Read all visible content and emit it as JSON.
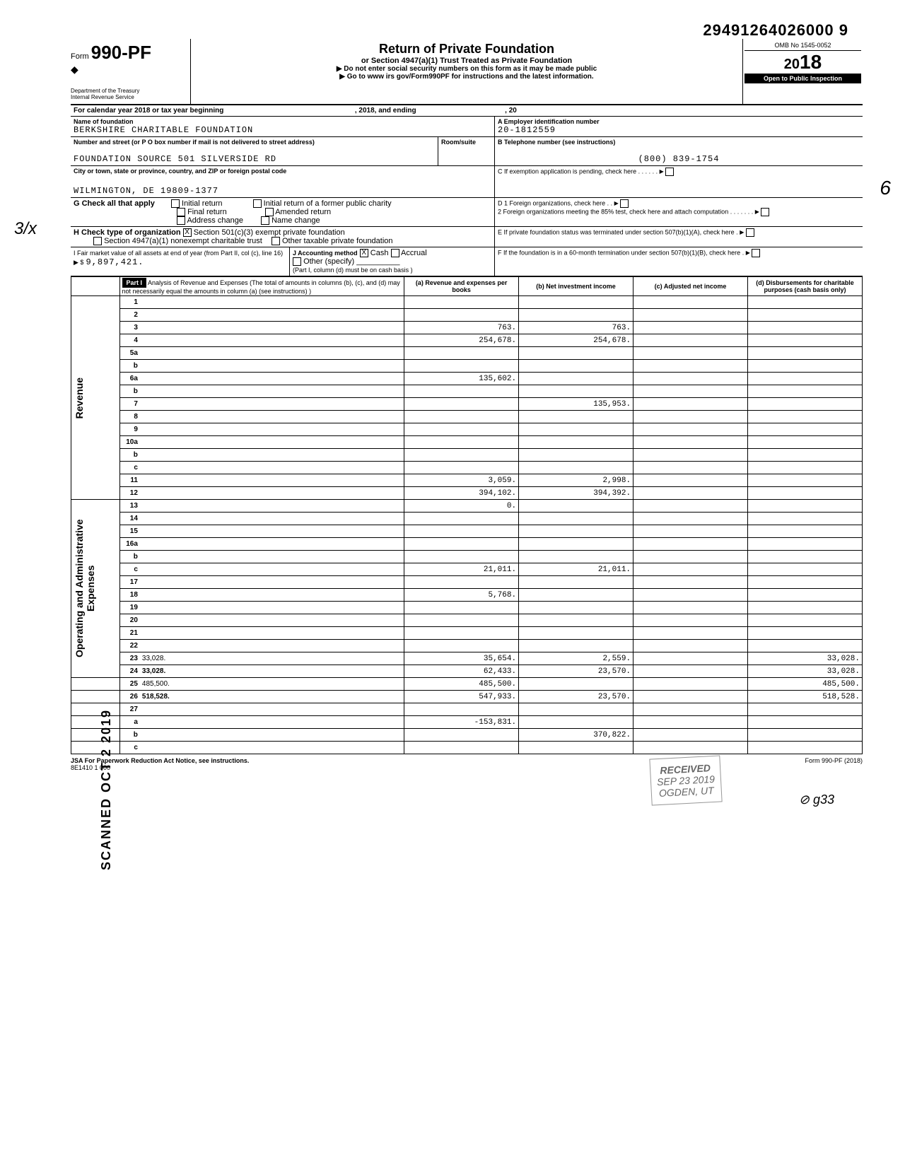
{
  "dln": "29491264026000 9",
  "form": {
    "prefix": "Form",
    "number": "990-PF",
    "dept1": "Department of the Treasury",
    "dept2": "Internal Revenue Service"
  },
  "header": {
    "title": "Return of Private Foundation",
    "sub1": "or Section 4947(a)(1) Trust Treated as Private Foundation",
    "sub2": "▶ Do not enter social security numbers on this form as it may be made public",
    "sub3": "▶ Go to www irs gov/Form990PF for instructions and the latest information."
  },
  "omb": "OMB No 1545-0052",
  "year": "2018",
  "inspect": "Open to Public Inspection",
  "calendar": {
    "label": "For calendar year 2018 or tax year beginning",
    "mid": ", 2018, and ending",
    "end": ", 20"
  },
  "A": {
    "label": "A  Employer identification number",
    "value": "20-1812559"
  },
  "name": {
    "label": "Name of foundation",
    "value": "BERKSHIRE CHARITABLE FOUNDATION"
  },
  "B": {
    "label": "B  Telephone number (see instructions)",
    "value": "(800) 839-1754"
  },
  "address": {
    "label": "Number and street (or P O  box number if mail is not delivered to street address)",
    "value": "FOUNDATION SOURCE 501 SILVERSIDE RD",
    "room": "Room/suite"
  },
  "city": {
    "label": "City or town, state or province, country, and ZIP or foreign postal code",
    "value": "WILMINGTON, DE 19809-1377"
  },
  "C": "C  If exemption application is pending, check here",
  "G": {
    "label": "G  Check all that apply",
    "opts": [
      "Initial return",
      "Final return",
      "Address change",
      "Initial return of a former public charity",
      "Amended return",
      "Name change"
    ]
  },
  "D": {
    "d1": "D  1  Foreign organizations, check here",
    "d2": "2  Foreign organizations meeting the 85% test, check here and attach computation"
  },
  "H": {
    "label": "H  Check type of organization",
    "opt1": "Section 501(c)(3) exempt private foundation",
    "opt2": "Section 4947(a)(1) nonexempt charitable trust",
    "opt3": "Other taxable private foundation"
  },
  "E": "E  If private foundation status was terminated under section 507(b)(1)(A), check here",
  "I": {
    "label": "I  Fair market value of all assets at end of year (from Part II, col (c), line 16) ▶ $",
    "value": "9,897,421."
  },
  "J": {
    "label": "J Accounting method",
    "cash": "Cash",
    "accrual": "Accrual",
    "other": "Other (specify)",
    "note": "(Part I, column (d) must be on cash basis )"
  },
  "F": "F  If the foundation is in a 60-month termination under section 507(b)(1)(B), check here",
  "part1": {
    "title": "Part I",
    "desc": "Analysis of Revenue and Expenses (The total of amounts in columns (b), (c), and (d) may not necessarily equal the amounts in column (a) (see instructions) )",
    "cols": [
      "(a) Revenue and expenses per books",
      "(b) Net investment income",
      "(c) Adjusted net income",
      "(d) Disbursements for charitable purposes (cash basis only)"
    ]
  },
  "sidebars": {
    "rev": "Revenue",
    "exp": "Operating and Administrative Expenses"
  },
  "lines": [
    {
      "n": "1",
      "d": "",
      "a": "",
      "b": "",
      "c": ""
    },
    {
      "n": "2",
      "d": "",
      "a": "",
      "b": "",
      "c": "",
      "blockBCD": true
    },
    {
      "n": "3",
      "d": "",
      "a": "763.",
      "b": "763.",
      "c": ""
    },
    {
      "n": "4",
      "d": "",
      "a": "254,678.",
      "b": "254,678.",
      "c": ""
    },
    {
      "n": "5a",
      "d": "",
      "a": "",
      "b": "",
      "c": ""
    },
    {
      "n": "b",
      "d": "",
      "a": "",
      "b": "",
      "c": "",
      "blockABCD": true
    },
    {
      "n": "6a",
      "d": "",
      "a": "135,602.",
      "b": "",
      "c": "",
      "blockBCD": true
    },
    {
      "n": "b",
      "d": "",
      "a": "",
      "b": "",
      "c": "",
      "blockABCD": true
    },
    {
      "n": "7",
      "d": "",
      "a": "",
      "b": "135,953.",
      "c": "",
      "blockA": true
    },
    {
      "n": "8",
      "d": "",
      "a": "",
      "b": "",
      "c": "",
      "blockAB": true
    },
    {
      "n": "9",
      "d": "",
      "a": "",
      "b": "",
      "c": "",
      "blockAB": true
    },
    {
      "n": "10a",
      "d": "",
      "a": "",
      "b": "",
      "c": "",
      "blockABCD": true
    },
    {
      "n": "b",
      "d": "",
      "a": "",
      "b": "",
      "c": "",
      "blockABCD": true
    },
    {
      "n": "c",
      "d": "",
      "a": "",
      "b": "",
      "c": "",
      "blockB": true
    },
    {
      "n": "11",
      "d": "",
      "a": "3,059.",
      "b": "2,998.",
      "c": ""
    },
    {
      "n": "12",
      "d": "",
      "a": "394,102.",
      "b": "394,392.",
      "c": "",
      "bold": true
    },
    {
      "n": "13",
      "d": "",
      "a": "0.",
      "b": "",
      "c": ""
    },
    {
      "n": "14",
      "d": "",
      "a": "",
      "b": "",
      "c": ""
    },
    {
      "n": "15",
      "d": "",
      "a": "",
      "b": "",
      "c": ""
    },
    {
      "n": "16a",
      "d": "",
      "a": "",
      "b": "",
      "c": ""
    },
    {
      "n": "b",
      "d": "",
      "a": "",
      "b": "",
      "c": ""
    },
    {
      "n": "c",
      "d": "",
      "a": "21,011.",
      "b": "21,011.",
      "c": ""
    },
    {
      "n": "17",
      "d": "",
      "a": "",
      "b": "",
      "c": ""
    },
    {
      "n": "18",
      "d": "",
      "a": "5,768.",
      "b": "",
      "c": ""
    },
    {
      "n": "19",
      "d": "",
      "a": "",
      "b": "",
      "c": "",
      "blockD": true
    },
    {
      "n": "20",
      "d": "",
      "a": "",
      "b": "",
      "c": ""
    },
    {
      "n": "21",
      "d": "",
      "a": "",
      "b": "",
      "c": ""
    },
    {
      "n": "22",
      "d": "",
      "a": "",
      "b": "",
      "c": ""
    },
    {
      "n": "23",
      "d": "33,028.",
      "a": "35,654.",
      "b": "2,559.",
      "c": ""
    },
    {
      "n": "24",
      "d": "33,028.",
      "a": "62,433.",
      "b": "23,570.",
      "c": "",
      "bold": true
    },
    {
      "n": "25",
      "d": "485,500.",
      "a": "485,500.",
      "b": "",
      "c": ""
    },
    {
      "n": "26",
      "d": "518,528.",
      "a": "547,933.",
      "b": "23,570.",
      "c": "",
      "bold": true
    },
    {
      "n": "27",
      "d": "",
      "a": "",
      "b": "",
      "c": "",
      "blockABCD": true
    },
    {
      "n": "a",
      "d": "",
      "a": "-153,831.",
      "b": "",
      "c": "",
      "blockBCD": true
    },
    {
      "n": "b",
      "d": "",
      "a": "",
      "b": "370,822.",
      "c": "",
      "blockA": true,
      "blockCD": true
    },
    {
      "n": "c",
      "d": "",
      "a": "",
      "b": "",
      "c": "",
      "blockAB": true,
      "blockD": true
    }
  ],
  "footer": {
    "left": "JSA  For Paperwork Reduction Act Notice, see instructions.",
    "code": "8E1410 1 000",
    "right": "Form 990-PF (2018)"
  },
  "stamps": {
    "received": "RECEIVED",
    "date": "SEP 23 2019",
    "ogden": "OGDEN, UT",
    "scanned": "SCANNED OCT 2 2019"
  },
  "pagemark": "⊘  g33",
  "margin1": "3/x",
  "margin2": "6",
  "colors": {
    "black": "#000000",
    "white": "#ffffff",
    "gray": "#666666"
  }
}
